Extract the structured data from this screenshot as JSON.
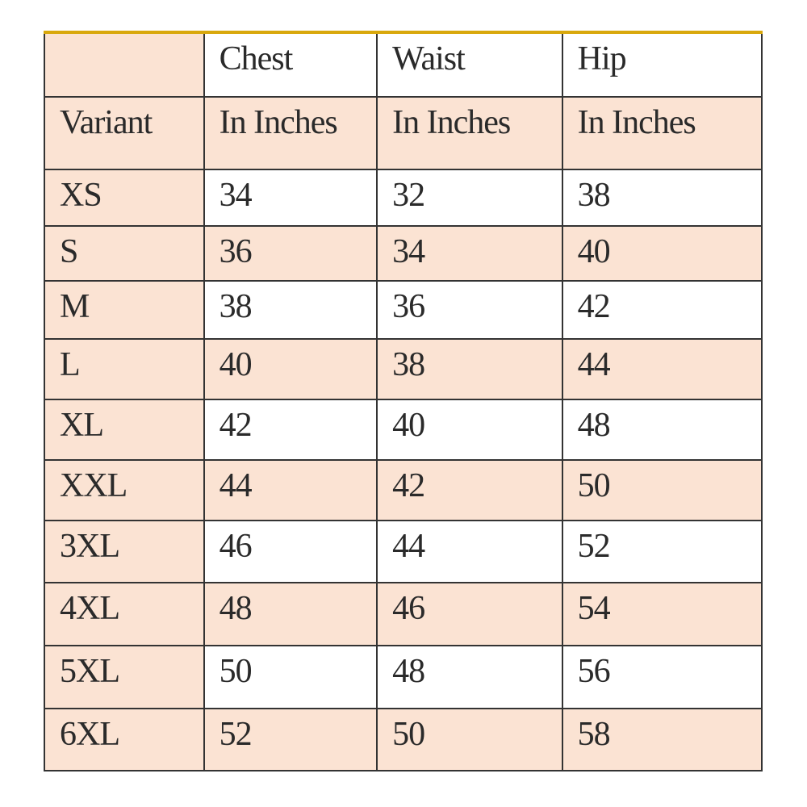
{
  "colors": {
    "shaded": "#fbe3d3",
    "plain": "#ffffff",
    "top_border": "#d9a80c",
    "grid": "#333333"
  },
  "header": {
    "row1": [
      "",
      "Chest",
      "Waist",
      "Hip"
    ],
    "row2": [
      "Variant",
      "In Inches",
      "In Inches",
      "In Inches"
    ]
  },
  "rows": [
    [
      "XS",
      "34",
      "32",
      "38"
    ],
    [
      "S",
      "36",
      "34",
      "40"
    ],
    [
      "M",
      "38",
      "36",
      "42"
    ],
    [
      "L",
      "40",
      "38",
      "44"
    ],
    [
      "XL",
      "42",
      "40",
      "48"
    ],
    [
      "XXL",
      "44",
      "42",
      "50"
    ],
    [
      "3XL",
      "46",
      "44",
      "52"
    ],
    [
      "4XL",
      "48",
      "46",
      "54"
    ],
    [
      "5XL",
      "50",
      "48",
      "56"
    ],
    [
      "6XL",
      "52",
      "50",
      "58"
    ]
  ]
}
